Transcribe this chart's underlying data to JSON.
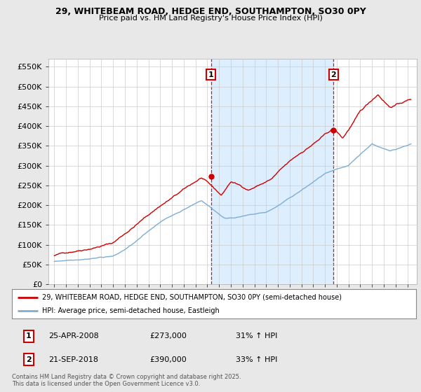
{
  "title": "29, WHITEBEAM ROAD, HEDGE END, SOUTHAMPTON, SO30 0PY",
  "subtitle": "Price paid vs. HM Land Registry's House Price Index (HPI)",
  "ylim": [
    0,
    570000
  ],
  "yticks": [
    0,
    50000,
    100000,
    150000,
    200000,
    250000,
    300000,
    350000,
    400000,
    450000,
    500000,
    550000
  ],
  "ytick_labels": [
    "£0",
    "£50K",
    "£100K",
    "£150K",
    "£200K",
    "£250K",
    "£300K",
    "£350K",
    "£400K",
    "£450K",
    "£500K",
    "£550K"
  ],
  "background_color": "#e8e8e8",
  "plot_bg_color": "#ffffff",
  "grid_color": "#cccccc",
  "red_color": "#cc0000",
  "blue_color": "#7eadd4",
  "shade_color": "#ddeeff",
  "sale1_x": 2008.32,
  "sale1_y": 273000,
  "sale2_x": 2018.73,
  "sale2_y": 390000,
  "legend_line1": "29, WHITEBEAM ROAD, HEDGE END, SOUTHAMPTON, SO30 0PY (semi-detached house)",
  "legend_line2": "HPI: Average price, semi-detached house, Eastleigh",
  "annotation1_date": "25-APR-2008",
  "annotation1_price": "£273,000",
  "annotation1_hpi": "31% ↑ HPI",
  "annotation2_date": "21-SEP-2018",
  "annotation2_price": "£390,000",
  "annotation2_hpi": "33% ↑ HPI",
  "footer": "Contains HM Land Registry data © Crown copyright and database right 2025.\nThis data is licensed under the Open Government Licence v3.0.",
  "xmin": 1994.5,
  "xmax": 2025.8
}
